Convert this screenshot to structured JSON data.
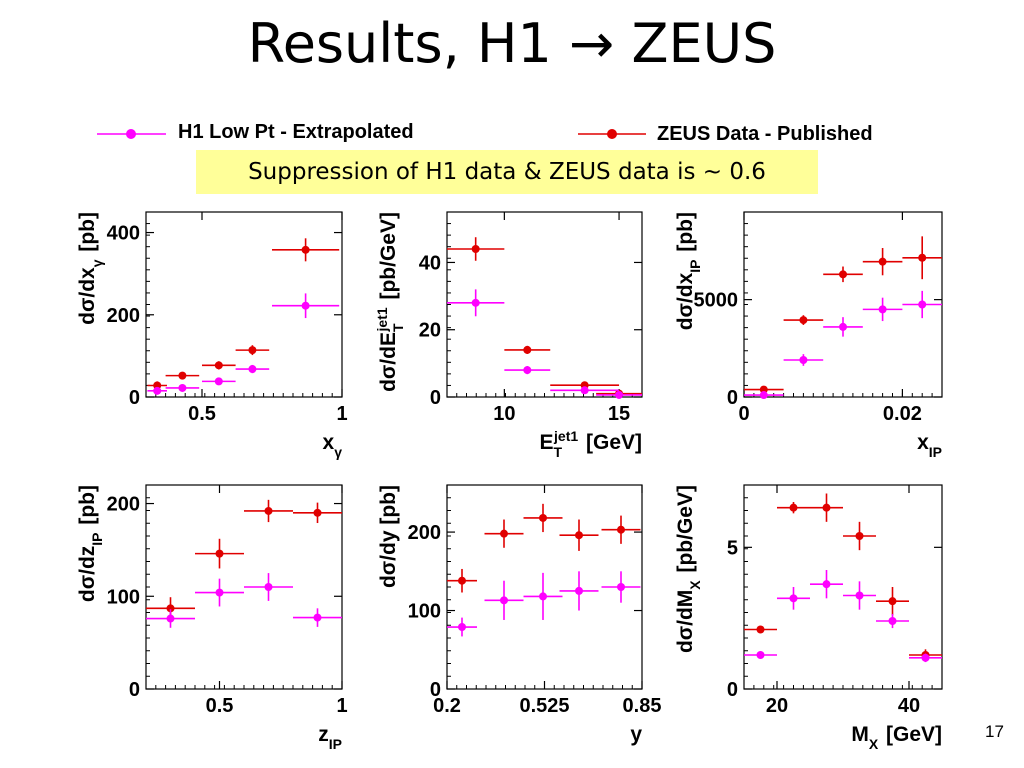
{
  "slide": {
    "title": "Results, H1 → ZEUS",
    "note": "Suppression of H1 data & ZEUS data is ~ 0.6",
    "page_number": "17"
  },
  "colors": {
    "h1": "#ff00ff",
    "zeus": "#e00000"
  },
  "legend": {
    "h1": "H1 Low Pt - Extrapolated",
    "zeus": "ZEUS Data - Published"
  },
  "chart_data": [
    {
      "type": "scatter",
      "xlabel": "xγ",
      "ylabel": "dσ/dxγ [pb]",
      "xlim": [
        0.3,
        1.0
      ],
      "ylim": [
        0,
        450
      ],
      "xticks": [
        0.5,
        1
      ],
      "xtick_labels": [
        "0.5",
        "1"
      ],
      "yticks": [
        0,
        200,
        400
      ],
      "ytick_labels": [
        "0",
        "200",
        "400"
      ],
      "series": [
        {
          "name": "ZEUS Data - Published",
          "x": [
            0.34,
            0.43,
            0.56,
            0.68,
            0.87
          ],
          "xerr": [
            0.035,
            0.06,
            0.06,
            0.06,
            0.12
          ],
          "y": [
            28,
            52,
            77,
            114,
            358
          ],
          "yerr": [
            10,
            8,
            10,
            12,
            28
          ]
        },
        {
          "name": "H1 Low Pt - Extrapolated",
          "x": [
            0.34,
            0.43,
            0.56,
            0.68,
            0.87
          ],
          "xerr": [
            0.035,
            0.06,
            0.06,
            0.06,
            0.12
          ],
          "y": [
            15,
            22,
            38,
            68,
            222
          ],
          "yerr": [
            6,
            6,
            8,
            10,
            30
          ]
        }
      ]
    },
    {
      "type": "scatter",
      "xlabel": "ETjet1 [GeV]",
      "ylabel": "dσ/dETjet1 [pb/GeV]",
      "xlim": [
        7.5,
        16
      ],
      "ylim": [
        0,
        55
      ],
      "xticks": [
        10,
        15
      ],
      "xtick_labels": [
        "10",
        "15"
      ],
      "yticks": [
        0,
        20,
        40
      ],
      "ytick_labels": [
        "0",
        "20",
        "40"
      ],
      "series": [
        {
          "name": "ZEUS Data - Published",
          "x": [
            8.75,
            11,
            13.5,
            15
          ],
          "xerr": [
            1.25,
            1,
            1.5,
            1
          ],
          "y": [
            44,
            14,
            3.5,
            1
          ],
          "yerr": [
            3.5,
            1.2,
            0.8,
            0.4
          ]
        },
        {
          "name": "H1 Low Pt - Extrapolated",
          "x": [
            8.75,
            11,
            13.5,
            15
          ],
          "xerr": [
            1.25,
            1,
            1.5,
            1
          ],
          "y": [
            28,
            8,
            2,
            0.6
          ],
          "yerr": [
            4,
            1.2,
            0.6,
            0.3
          ]
        }
      ]
    },
    {
      "type": "scatter",
      "xlabel": "xIP",
      "ylabel": "dσ/dxIP [pb]",
      "xlim": [
        0,
        0.025
      ],
      "ylim": [
        0,
        9500
      ],
      "xticks": [
        0,
        0.02
      ],
      "xtick_labels": [
        "0",
        "0.02"
      ],
      "yticks": [
        0,
        5000
      ],
      "ytick_labels": [
        "0",
        "5000"
      ],
      "series": [
        {
          "name": "ZEUS Data - Published",
          "x": [
            0.0025,
            0.0075,
            0.0125,
            0.0175,
            0.0225
          ],
          "xerr": [
            0.0025,
            0.0025,
            0.0025,
            0.0025,
            0.0025
          ],
          "y": [
            380,
            3950,
            6300,
            6950,
            7150
          ],
          "yerr": [
            150,
            250,
            400,
            700,
            1100
          ]
        },
        {
          "name": "H1 Low Pt - Extrapolated",
          "x": [
            0.0025,
            0.0075,
            0.0125,
            0.0175,
            0.0225
          ],
          "xerr": [
            0.0025,
            0.0025,
            0.0025,
            0.0025,
            0.0025
          ],
          "y": [
            100,
            1900,
            3600,
            4500,
            4750
          ],
          "yerr": [
            80,
            300,
            500,
            600,
            700
          ]
        }
      ]
    },
    {
      "type": "scatter",
      "xlabel": "zIP",
      "ylabel": "dσ/dzIP [pb]",
      "xlim": [
        0.2,
        1.0
      ],
      "ylim": [
        0,
        220
      ],
      "xticks": [
        0.5,
        1
      ],
      "xtick_labels": [
        "0.5",
        "1"
      ],
      "yticks": [
        0,
        100,
        200
      ],
      "ytick_labels": [
        "0",
        "100",
        "200"
      ],
      "series": [
        {
          "name": "ZEUS Data - Published",
          "x": [
            0.3,
            0.5,
            0.7,
            0.9
          ],
          "xerr": [
            0.1,
            0.1,
            0.1,
            0.1
          ],
          "y": [
            87,
            146,
            192,
            190
          ],
          "yerr": [
            12,
            16,
            12,
            11
          ]
        },
        {
          "name": "H1 Low Pt - Extrapolated",
          "x": [
            0.3,
            0.5,
            0.7,
            0.9
          ],
          "xerr": [
            0.1,
            0.1,
            0.1,
            0.1
          ],
          "y": [
            76,
            104,
            110,
            77
          ],
          "yerr": [
            10,
            15,
            15,
            10
          ]
        }
      ]
    },
    {
      "type": "scatter",
      "xlabel": "y",
      "ylabel": "dσ/dy [pb]",
      "xlim": [
        0.2,
        0.85
      ],
      "ylim": [
        0,
        260
      ],
      "xticks": [
        0.2,
        0.525,
        0.85
      ],
      "xtick_labels": [
        "0.2",
        "0.525",
        "0.85"
      ],
      "yticks": [
        0,
        100,
        200
      ],
      "ytick_labels": [
        "0",
        "100",
        "200"
      ],
      "series": [
        {
          "name": "ZEUS Data - Published",
          "x": [
            0.25,
            0.39,
            0.52,
            0.64,
            0.78
          ],
          "xerr": [
            0.05,
            0.065,
            0.065,
            0.065,
            0.065
          ],
          "y": [
            138,
            198,
            218,
            196,
            203
          ],
          "yerr": [
            15,
            18,
            18,
            20,
            18
          ]
        },
        {
          "name": "H1 Low Pt - Extrapolated",
          "x": [
            0.25,
            0.39,
            0.52,
            0.64,
            0.78
          ],
          "xerr": [
            0.05,
            0.065,
            0.065,
            0.065,
            0.065
          ],
          "y": [
            79,
            113,
            118,
            125,
            130
          ],
          "yerr": [
            12,
            25,
            30,
            25,
            20
          ]
        }
      ]
    },
    {
      "type": "scatter",
      "xlabel": "MX [GeV]",
      "ylabel": "dσ/dMX [pb/GeV]",
      "xlim": [
        15,
        45
      ],
      "ylim": [
        0,
        7.2
      ],
      "xticks": [
        20,
        40
      ],
      "xtick_labels": [
        "20",
        "40"
      ],
      "yticks": [
        0,
        5
      ],
      "ytick_labels": [
        "0",
        "5"
      ],
      "series": [
        {
          "name": "ZEUS Data - Published",
          "x": [
            17.5,
            22.5,
            27.5,
            32.5,
            37.5,
            42.5
          ],
          "xerr": [
            2.5,
            2.5,
            2.5,
            2.5,
            2.5,
            2.5
          ],
          "y": [
            2.1,
            6.4,
            6.4,
            5.4,
            3.1,
            1.2
          ],
          "yerr": [
            0.1,
            0.2,
            0.5,
            0.5,
            0.5,
            0.2
          ]
        },
        {
          "name": "H1 Low Pt - Extrapolated",
          "x": [
            17.5,
            22.5,
            27.5,
            32.5,
            37.5,
            42.5
          ],
          "xerr": [
            2.5,
            2.5,
            2.5,
            2.5,
            2.5,
            2.5
          ],
          "y": [
            1.2,
            3.2,
            3.7,
            3.3,
            2.4,
            1.1
          ],
          "yerr": [
            0.1,
            0.4,
            0.5,
            0.5,
            0.25,
            0.15
          ]
        }
      ]
    }
  ]
}
